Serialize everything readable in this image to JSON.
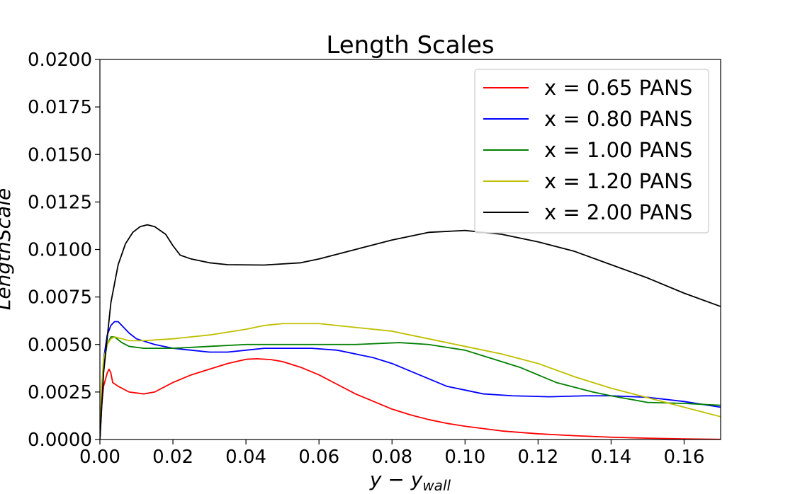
{
  "chart_data": {
    "type": "line",
    "title": "Length Scales",
    "xlabel_main": "y − y",
    "xlabel_sub": "wall",
    "ylabel": "LengthScale",
    "xlim": [
      0.0,
      0.17
    ],
    "ylim": [
      0.0,
      0.02
    ],
    "xticks": [
      {
        "value": 0.0,
        "label": "0.00"
      },
      {
        "value": 0.02,
        "label": "0.02"
      },
      {
        "value": 0.04,
        "label": "0.04"
      },
      {
        "value": 0.06,
        "label": "0.06"
      },
      {
        "value": 0.08,
        "label": "0.08"
      },
      {
        "value": 0.1,
        "label": "0.10"
      },
      {
        "value": 0.12,
        "label": "0.12"
      },
      {
        "value": 0.14,
        "label": "0.14"
      },
      {
        "value": 0.16,
        "label": "0.16"
      }
    ],
    "yticks": [
      {
        "value": 0.0,
        "label": "0.0000"
      },
      {
        "value": 0.0025,
        "label": "0.0025"
      },
      {
        "value": 0.005,
        "label": "0.0050"
      },
      {
        "value": 0.0075,
        "label": "0.0075"
      },
      {
        "value": 0.01,
        "label": "0.0100"
      },
      {
        "value": 0.0125,
        "label": "0.0125"
      },
      {
        "value": 0.015,
        "label": "0.0150"
      },
      {
        "value": 0.0175,
        "label": "0.0175"
      },
      {
        "value": 0.02,
        "label": "0.0200"
      }
    ],
    "grid": false,
    "legend_position": "top-right",
    "series": [
      {
        "name": "x = 0.65 PANS",
        "color": "#ff0000",
        "points": [
          [
            0,
            0
          ],
          [
            0.0005,
            0.0018
          ],
          [
            0.001,
            0.0028
          ],
          [
            0.002,
            0.0035
          ],
          [
            0.0025,
            0.0037
          ],
          [
            0.003,
            0.0035
          ],
          [
            0.0035,
            0.003
          ],
          [
            0.005,
            0.0028
          ],
          [
            0.008,
            0.0025
          ],
          [
            0.012,
            0.0024
          ],
          [
            0.015,
            0.0025
          ],
          [
            0.02,
            0.003
          ],
          [
            0.025,
            0.0034
          ],
          [
            0.03,
            0.0037
          ],
          [
            0.035,
            0.004
          ],
          [
            0.04,
            0.00422
          ],
          [
            0.043,
            0.00425
          ],
          [
            0.047,
            0.0042
          ],
          [
            0.05,
            0.0041
          ],
          [
            0.055,
            0.0038
          ],
          [
            0.06,
            0.0034
          ],
          [
            0.065,
            0.0029
          ],
          [
            0.07,
            0.0024
          ],
          [
            0.075,
            0.002
          ],
          [
            0.08,
            0.0016
          ],
          [
            0.085,
            0.0013
          ],
          [
            0.09,
            0.00105
          ],
          [
            0.095,
            0.00085
          ],
          [
            0.1,
            0.0007
          ],
          [
            0.11,
            0.00045
          ],
          [
            0.12,
            0.0003
          ],
          [
            0.13,
            0.0002
          ],
          [
            0.14,
            0.00012
          ],
          [
            0.15,
            7e-05
          ],
          [
            0.16,
            3e-05
          ],
          [
            0.17,
            1e-05
          ]
        ]
      },
      {
        "name": "x = 0.80 PANS",
        "color": "#0000ff",
        "points": [
          [
            0,
            0
          ],
          [
            0.0005,
            0.0025
          ],
          [
            0.001,
            0.0042
          ],
          [
            0.002,
            0.0055
          ],
          [
            0.003,
            0.006
          ],
          [
            0.004,
            0.0062
          ],
          [
            0.005,
            0.0062
          ],
          [
            0.006,
            0.006
          ],
          [
            0.008,
            0.0056
          ],
          [
            0.01,
            0.0053
          ],
          [
            0.015,
            0.005
          ],
          [
            0.02,
            0.0048
          ],
          [
            0.025,
            0.0047
          ],
          [
            0.03,
            0.0046
          ],
          [
            0.035,
            0.0046
          ],
          [
            0.04,
            0.0047
          ],
          [
            0.045,
            0.0048
          ],
          [
            0.05,
            0.0048
          ],
          [
            0.058,
            0.0048
          ],
          [
            0.065,
            0.0047
          ],
          [
            0.07,
            0.0045
          ],
          [
            0.075,
            0.0043
          ],
          [
            0.08,
            0.004
          ],
          [
            0.085,
            0.0036
          ],
          [
            0.09,
            0.0032
          ],
          [
            0.095,
            0.0028
          ],
          [
            0.1,
            0.0026
          ],
          [
            0.105,
            0.0024
          ],
          [
            0.113,
            0.0023
          ],
          [
            0.123,
            0.00225
          ],
          [
            0.133,
            0.0023
          ],
          [
            0.14,
            0.0023
          ],
          [
            0.15,
            0.00222
          ],
          [
            0.16,
            0.002
          ],
          [
            0.17,
            0.0017
          ]
        ]
      },
      {
        "name": "x = 1.00 PANS",
        "color": "#008000",
        "points": [
          [
            0,
            0
          ],
          [
            0.0005,
            0.0025
          ],
          [
            0.001,
            0.004
          ],
          [
            0.002,
            0.005
          ],
          [
            0.003,
            0.0054
          ],
          [
            0.004,
            0.0054
          ],
          [
            0.006,
            0.0051
          ],
          [
            0.008,
            0.0049
          ],
          [
            0.012,
            0.0048
          ],
          [
            0.02,
            0.0048
          ],
          [
            0.03,
            0.0049
          ],
          [
            0.04,
            0.005
          ],
          [
            0.05,
            0.005
          ],
          [
            0.06,
            0.005
          ],
          [
            0.07,
            0.005
          ],
          [
            0.082,
            0.0051
          ],
          [
            0.09,
            0.005
          ],
          [
            0.1,
            0.0047
          ],
          [
            0.105,
            0.0044
          ],
          [
            0.115,
            0.0038
          ],
          [
            0.125,
            0.003
          ],
          [
            0.135,
            0.0025
          ],
          [
            0.14,
            0.0023
          ],
          [
            0.15,
            0.00195
          ],
          [
            0.16,
            0.0019
          ],
          [
            0.17,
            0.0018
          ]
        ]
      },
      {
        "name": "x = 1.20 PANS",
        "color": "#bfbf00",
        "points": [
          [
            0,
            0
          ],
          [
            0.0005,
            0.0028
          ],
          [
            0.001,
            0.0042
          ],
          [
            0.002,
            0.005
          ],
          [
            0.003,
            0.0053
          ],
          [
            0.004,
            0.0054
          ],
          [
            0.006,
            0.0053
          ],
          [
            0.008,
            0.0052
          ],
          [
            0.012,
            0.0052
          ],
          [
            0.02,
            0.0053
          ],
          [
            0.03,
            0.0055
          ],
          [
            0.04,
            0.0058
          ],
          [
            0.045,
            0.006
          ],
          [
            0.05,
            0.0061
          ],
          [
            0.055,
            0.0061
          ],
          [
            0.06,
            0.0061
          ],
          [
            0.07,
            0.0059
          ],
          [
            0.08,
            0.0057
          ],
          [
            0.09,
            0.0053
          ],
          [
            0.1,
            0.0049
          ],
          [
            0.11,
            0.0045
          ],
          [
            0.12,
            0.004
          ],
          [
            0.13,
            0.0033
          ],
          [
            0.14,
            0.0027
          ],
          [
            0.15,
            0.0022
          ],
          [
            0.16,
            0.0017
          ],
          [
            0.17,
            0.0012
          ]
        ]
      },
      {
        "name": "x = 2.00 PANS",
        "color": "#000000",
        "points": [
          [
            0,
            0
          ],
          [
            0.001,
            0.0035
          ],
          [
            0.003,
            0.0072
          ],
          [
            0.005,
            0.0092
          ],
          [
            0.007,
            0.0103
          ],
          [
            0.009,
            0.0109
          ],
          [
            0.011,
            0.0112
          ],
          [
            0.013,
            0.0113
          ],
          [
            0.015,
            0.0112
          ],
          [
            0.018,
            0.0108
          ],
          [
            0.02,
            0.0102
          ],
          [
            0.022,
            0.0097
          ],
          [
            0.025,
            0.0095
          ],
          [
            0.03,
            0.0093
          ],
          [
            0.035,
            0.0092
          ],
          [
            0.045,
            0.00918
          ],
          [
            0.055,
            0.0093
          ],
          [
            0.06,
            0.0095
          ],
          [
            0.07,
            0.01
          ],
          [
            0.08,
            0.0105
          ],
          [
            0.09,
            0.0109
          ],
          [
            0.1,
            0.011
          ],
          [
            0.11,
            0.0108
          ],
          [
            0.12,
            0.0104
          ],
          [
            0.13,
            0.0099
          ],
          [
            0.14,
            0.0092
          ],
          [
            0.15,
            0.0085
          ],
          [
            0.16,
            0.0077
          ],
          [
            0.17,
            0.007
          ]
        ]
      }
    ]
  }
}
